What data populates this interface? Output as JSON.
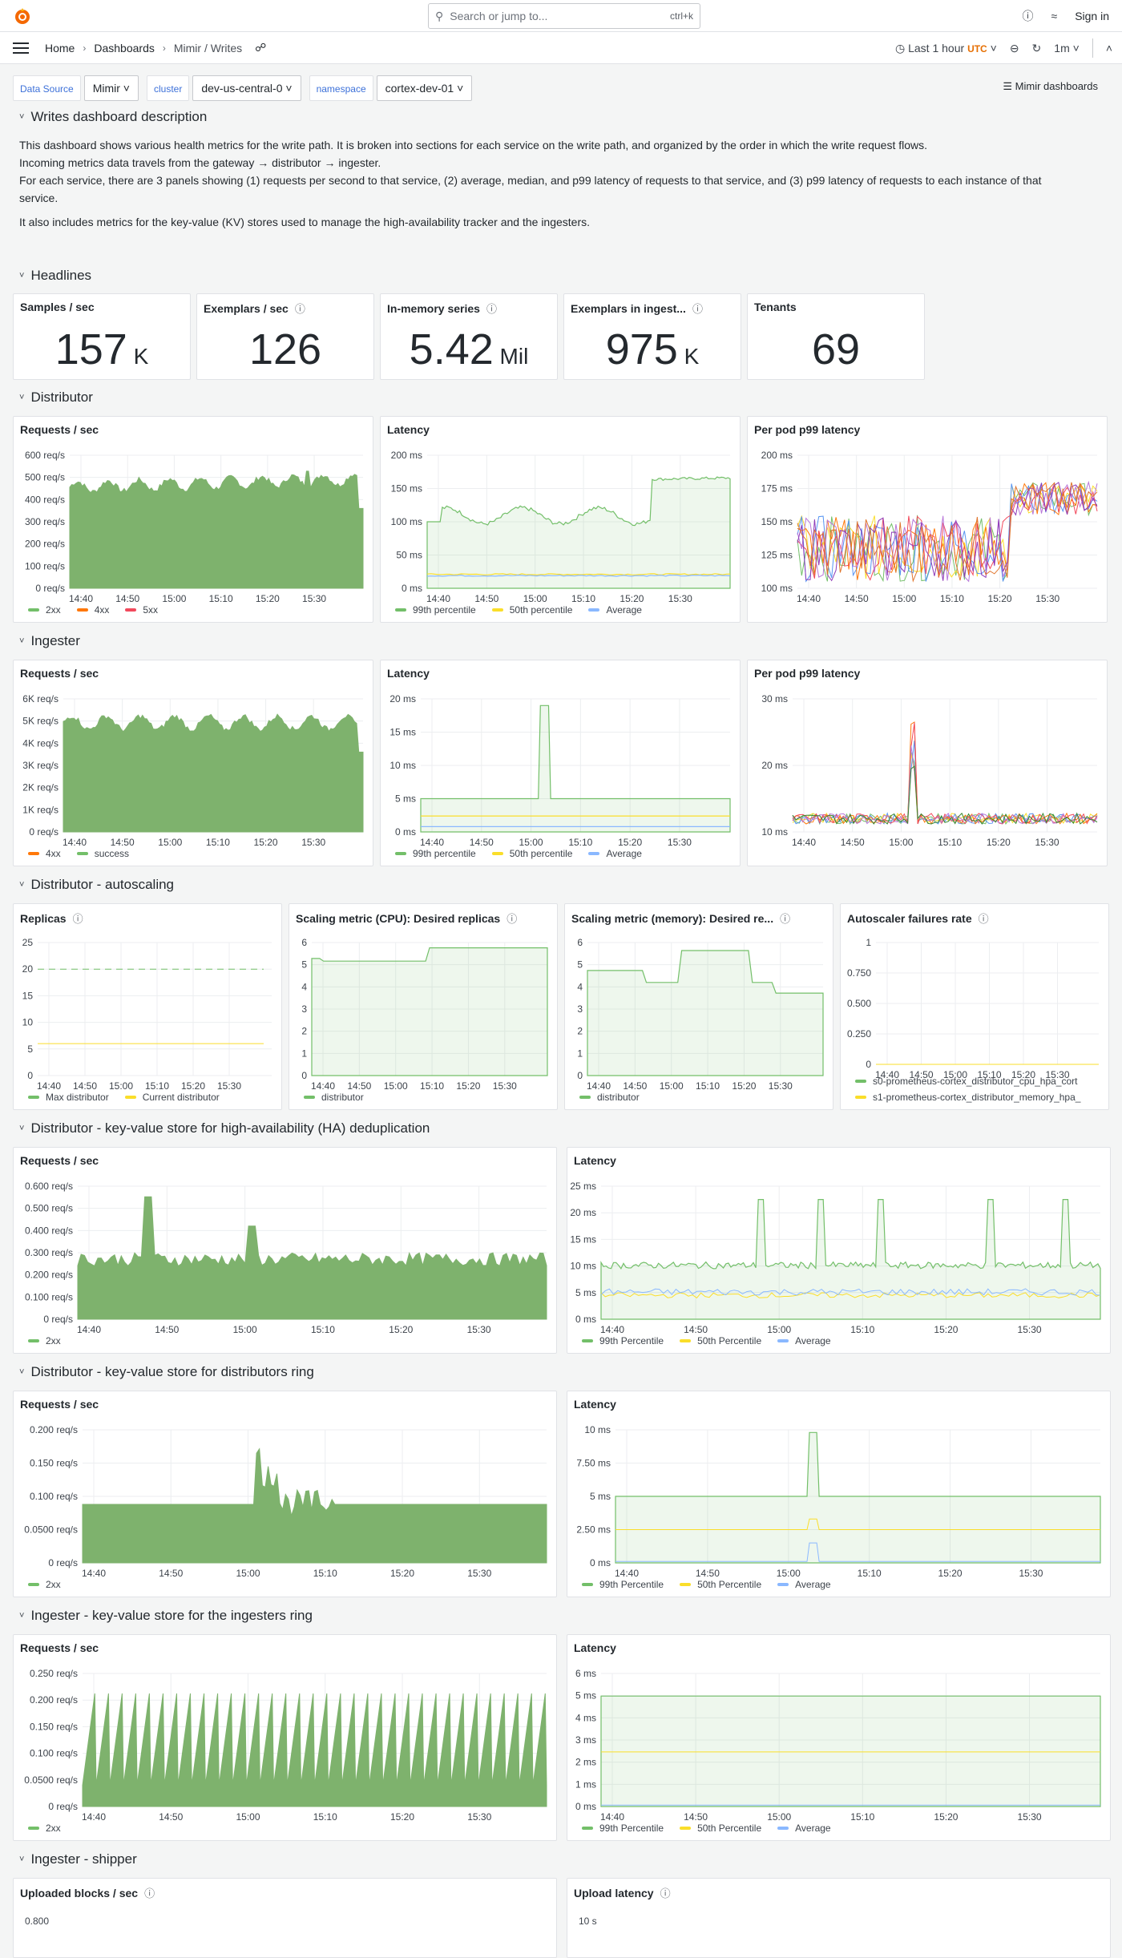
{
  "topbar": {
    "search_placeholder": "Search or jump to...",
    "search_shortcut": "ctrl+k",
    "sign_in": "Sign in"
  },
  "nav": {
    "breadcrumbs": [
      "Home",
      "Dashboards",
      "Mimir / Writes"
    ],
    "time_range": "Last 1 hour",
    "timezone": "UTC",
    "refresh": "1m"
  },
  "variables": {
    "ds_label": "Data Source",
    "ds_value": "Mimir",
    "cluster_label": "cluster",
    "cluster_value": "dev-us-central-0",
    "ns_label": "namespace",
    "ns_value": "cortex-dev-01",
    "mimir_link": "Mimir dashboards"
  },
  "rows": {
    "desc": "Writes dashboard description",
    "headlines": "Headlines",
    "distributor": "Distributor",
    "ingester": "Ingester",
    "autoscaling": "Distributor - autoscaling",
    "ha": "Distributor - key-value store for high-availability (HA) deduplication",
    "distring": "Distributor - key-value store for distributors ring",
    "ingring": "Ingester - key-value store for the ingesters ring",
    "shipper": "Ingester - shipper"
  },
  "description": {
    "l1": "This dashboard shows various health metrics for the write path. It is broken into sections for each service on the write path, and organized by the order in which the write request flows.",
    "l2": "Incoming metrics data travels from the gateway → distributor → ingester.",
    "l3": "For each service, there are 3 panels showing (1) requests per second to that service, (2) average, median, and p99 latency of requests to that service, and (3) p99 latency of requests to each instance of that service.",
    "l4": "It also includes metrics for the key-value (KV) stores used to manage the high-availability tracker and the ingesters."
  },
  "stats": [
    {
      "title": "Samples / sec",
      "value": "157",
      "unit": "K",
      "info": false
    },
    {
      "title": "Exemplars / sec",
      "value": "126",
      "unit": "",
      "info": true
    },
    {
      "title": "In-memory series",
      "value": "5.42",
      "unit": "Mil",
      "info": true
    },
    {
      "title": "Exemplars in ingest...",
      "value": "975",
      "unit": "K",
      "info": true
    },
    {
      "title": "Tenants",
      "value": "69",
      "unit": "",
      "info": false
    }
  ],
  "colors": {
    "green": "#73bf69",
    "green_fill": "#7eb26d",
    "yellow": "#fade2a",
    "orange": "#ff780a",
    "red": "#f2495c",
    "blue": "#8ab8ff",
    "cyan": "#5794f2"
  },
  "xticks": [
    "14:40",
    "14:50",
    "15:00",
    "15:10",
    "15:20",
    "15:30"
  ],
  "panels": {
    "dist_rps": {
      "title": "Requests / sec",
      "yticks": [
        "600 req/s",
        "500 req/s",
        "400 req/s",
        "300 req/s",
        "200 req/s",
        "100 req/s",
        "0 req/s"
      ],
      "legend": [
        "2xx",
        "4xx",
        "5xx"
      ]
    },
    "dist_lat": {
      "title": "Latency",
      "yticks": [
        "200 ms",
        "150 ms",
        "100 ms",
        "50 ms",
        "0 ms"
      ],
      "legend": [
        "99th percentile",
        "50th percentile",
        "Average"
      ]
    },
    "dist_pod": {
      "title": "Per pod p99 latency",
      "yticks": [
        "200 ms",
        "175 ms",
        "150 ms",
        "125 ms",
        "100 ms"
      ]
    },
    "ing_rps": {
      "title": "Requests / sec",
      "yticks": [
        "6K req/s",
        "5K req/s",
        "4K req/s",
        "3K req/s",
        "2K req/s",
        "1K req/s",
        "0 req/s"
      ],
      "legend": [
        "4xx",
        "success"
      ]
    },
    "ing_lat": {
      "title": "Latency",
      "yticks": [
        "20 ms",
        "15 ms",
        "10 ms",
        "5 ms",
        "0 ms"
      ],
      "legend": [
        "99th percentile",
        "50th percentile",
        "Average"
      ]
    },
    "ing_pod": {
      "title": "Per pod p99 latency",
      "yticks": [
        "30 ms",
        "20 ms",
        "10 ms"
      ]
    },
    "replicas": {
      "title": "Replicas",
      "yticks": [
        "25",
        "20",
        "15",
        "10",
        "5",
        "0"
      ],
      "legend": [
        "Max distributor",
        "Current distributor"
      ]
    },
    "cpu": {
      "title": "Scaling metric (CPU): Desired replicas",
      "yticks": [
        "6",
        "5",
        "4",
        "3",
        "2",
        "1",
        "0"
      ],
      "legend": [
        "distributor"
      ]
    },
    "mem": {
      "title": "Scaling metric (memory): Desired re...",
      "yticks": [
        "6",
        "5",
        "4",
        "3",
        "2",
        "1",
        "0"
      ],
      "legend": [
        "distributor"
      ]
    },
    "fail": {
      "title": "Autoscaler failures rate",
      "yticks": [
        "1",
        "0.750",
        "0.500",
        "0.250",
        "0"
      ],
      "legend": [
        "s0-prometheus-cortex_distributor_cpu_hpa_cort",
        "s1-prometheus-cortex_distributor_memory_hpa_"
      ]
    },
    "ha_rps": {
      "title": "Requests / sec",
      "yticks": [
        "0.600 req/s",
        "0.500 req/s",
        "0.400 req/s",
        "0.300 req/s",
        "0.200 req/s",
        "0.100 req/s",
        "0 req/s"
      ],
      "legend": [
        "2xx"
      ]
    },
    "ha_lat": {
      "title": "Latency",
      "yticks": [
        "25 ms",
        "20 ms",
        "15 ms",
        "10 ms",
        "5 ms",
        "0 ms"
      ],
      "legend": [
        "99th Percentile",
        "50th Percentile",
        "Average"
      ]
    },
    "dr_rps": {
      "title": "Requests / sec",
      "yticks": [
        "0.200 req/s",
        "0.150 req/s",
        "0.100 req/s",
        "0.0500 req/s",
        "0 req/s"
      ],
      "legend": [
        "2xx"
      ]
    },
    "dr_lat": {
      "title": "Latency",
      "yticks": [
        "10 ms",
        "7.50 ms",
        "5 ms",
        "2.50 ms",
        "0 ms"
      ],
      "legend": [
        "99th Percentile",
        "50th Percentile",
        "Average"
      ]
    },
    "ir_rps": {
      "title": "Requests / sec",
      "yticks": [
        "0.250 req/s",
        "0.200 req/s",
        "0.150 req/s",
        "0.100 req/s",
        "0.0500 req/s",
        "0 req/s"
      ],
      "legend": [
        "2xx"
      ]
    },
    "ir_lat": {
      "title": "Latency",
      "yticks": [
        "6 ms",
        "5 ms",
        "4 ms",
        "3 ms",
        "2 ms",
        "1 ms",
        "0 ms"
      ],
      "legend": [
        "99th Percentile",
        "50th Percentile",
        "Average"
      ]
    },
    "ship_up": {
      "title": "Uploaded blocks / sec",
      "yticks": [
        "0.800"
      ]
    },
    "ship_lat": {
      "title": "Upload latency",
      "yticks": [
        "10 s"
      ]
    }
  }
}
